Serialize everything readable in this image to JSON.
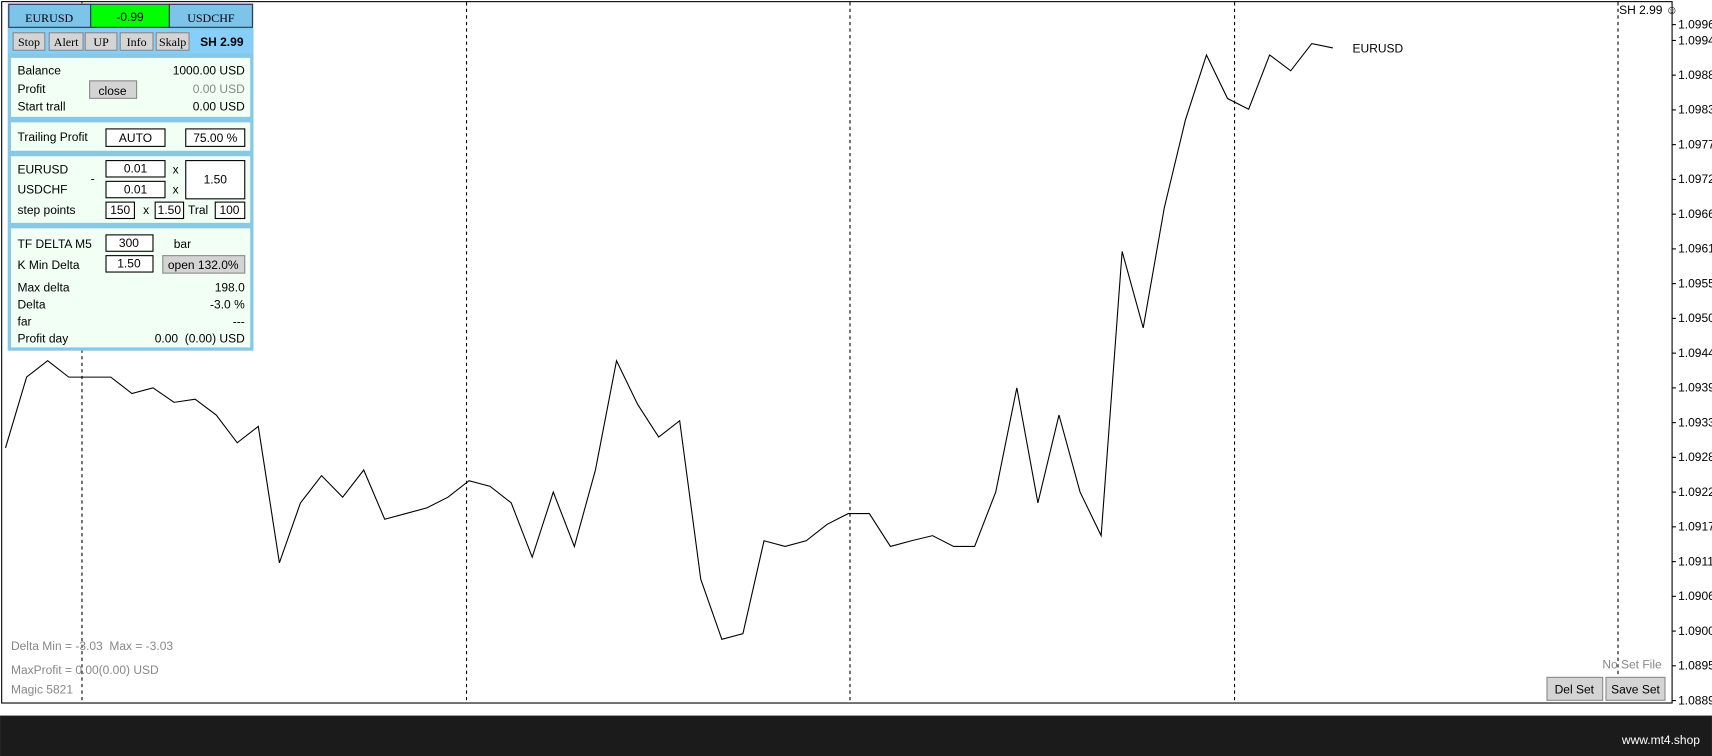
{
  "panel": {
    "header": {
      "symbol_1": "EURUSD",
      "delta": "-0.99",
      "symbol_2": "USDCHF"
    },
    "buttons": [
      "Stop",
      "Alert",
      "UP",
      "Info",
      "Skalp"
    ],
    "strategy": "SH 2.99",
    "account": {
      "balance_label": "Balance",
      "balance": "1000.00 USD",
      "profit_label": "Profit",
      "close_button": "close",
      "profit": "0.00 USD",
      "start_trall_label": "Start trall",
      "start_trall": "0.00 USD"
    },
    "trailing": {
      "label": "Trailing Profit",
      "mode": "AUTO",
      "percent": "75.00 %"
    },
    "lots": {
      "symbol_1": "EURUSD",
      "lot_1": "0.01",
      "symbol_2": "USDCHF",
      "lot_2": "0.01",
      "minus": "-",
      "times_1": "x",
      "times_2": "x",
      "multiplier": "1.50",
      "step_label": "step points",
      "step": "150",
      "step_times": "x",
      "step_multiplier": "1.50",
      "tral_label": "Tral",
      "tral": "100"
    },
    "delta": {
      "tf_label": "TF DELTA M5",
      "tf_bars": "300",
      "bar_label": "bar",
      "k_min_label": "K Min Delta",
      "k_min": "1.50",
      "open_button": "open 132.0%",
      "rows": [
        [
          "Max delta",
          "198.0"
        ],
        [
          "Delta",
          "-3.0 %"
        ],
        [
          "far",
          "---"
        ],
        [
          "Profit day",
          "0.00  (0.00) USD"
        ]
      ]
    }
  },
  "chart": {
    "symbol_label": "EURUSD",
    "corner_label": "SH 2.99 ☺",
    "ylim": [
      1.08892,
      1.10004
    ],
    "yticks": [
      1.09965,
      {
        "value": 1.0994,
        "label": "1.09940"
      },
      1.09885,
      {
        "value": 1.0983,
        "label": "1.09830"
      },
      1.09775,
      {
        "value": 1.0972,
        "label": "1.09720"
      },
      1.09665,
      {
        "value": 1.0961,
        "label": "1.09610"
      },
      1.09555,
      {
        "value": 1.095,
        "label": "1.09500"
      },
      1.09445,
      {
        "value": 1.0939,
        "label": "1.09390"
      },
      1.09335,
      {
        "value": 1.0928,
        "label": "1.09280"
      },
      1.09225,
      {
        "value": 1.0917,
        "label": "1.09170"
      },
      1.09115,
      {
        "value": 1.0906,
        "label": "1.09060"
      },
      1.09005,
      {
        "value": 1.0895,
        "label": "1.08950"
      },
      1.08895
    ],
    "values": [
      1.09295,
      1.09407,
      1.09433,
      1.09407,
      1.09407,
      1.09407,
      1.09381,
      1.0939,
      1.09367,
      1.09372,
      1.09347,
      1.09303,
      1.09329,
      1.09113,
      1.09208,
      1.09251,
      1.09217,
      1.0926,
      1.09182,
      1.09191,
      1.092,
      1.09217,
      1.09243,
      1.09234,
      1.09208,
      1.09122,
      1.09225,
      1.09139,
      1.0926,
      1.09433,
      1.09364,
      1.09312,
      1.09338,
      1.09087,
      1.08992,
      1.09001,
      1.09148,
      1.09139,
      1.09148,
      1.09174,
      1.09191,
      1.09191,
      1.09139,
      1.09148,
      1.09156,
      1.09139,
      1.09139,
      1.09225,
      1.0939,
      1.09208,
      1.09347,
      1.09225,
      1.09156,
      1.09606,
      1.09485,
      1.09675,
      1.09814,
      1.09917,
      1.09848,
      1.09831,
      1.09917,
      1.09892,
      1.09935,
      1.09928
    ]
  },
  "status": {
    "delta_minmax": "Delta Min = -3.03  Max = -3.03",
    "max_profit": "MaxProfit = 0.00(0.00) USD",
    "magic": "Magic 5821",
    "set_file": "No Set File",
    "del_button": "Del Set",
    "save_button": "Save Set"
  },
  "footer": {
    "site": "www.mt4.shop"
  }
}
